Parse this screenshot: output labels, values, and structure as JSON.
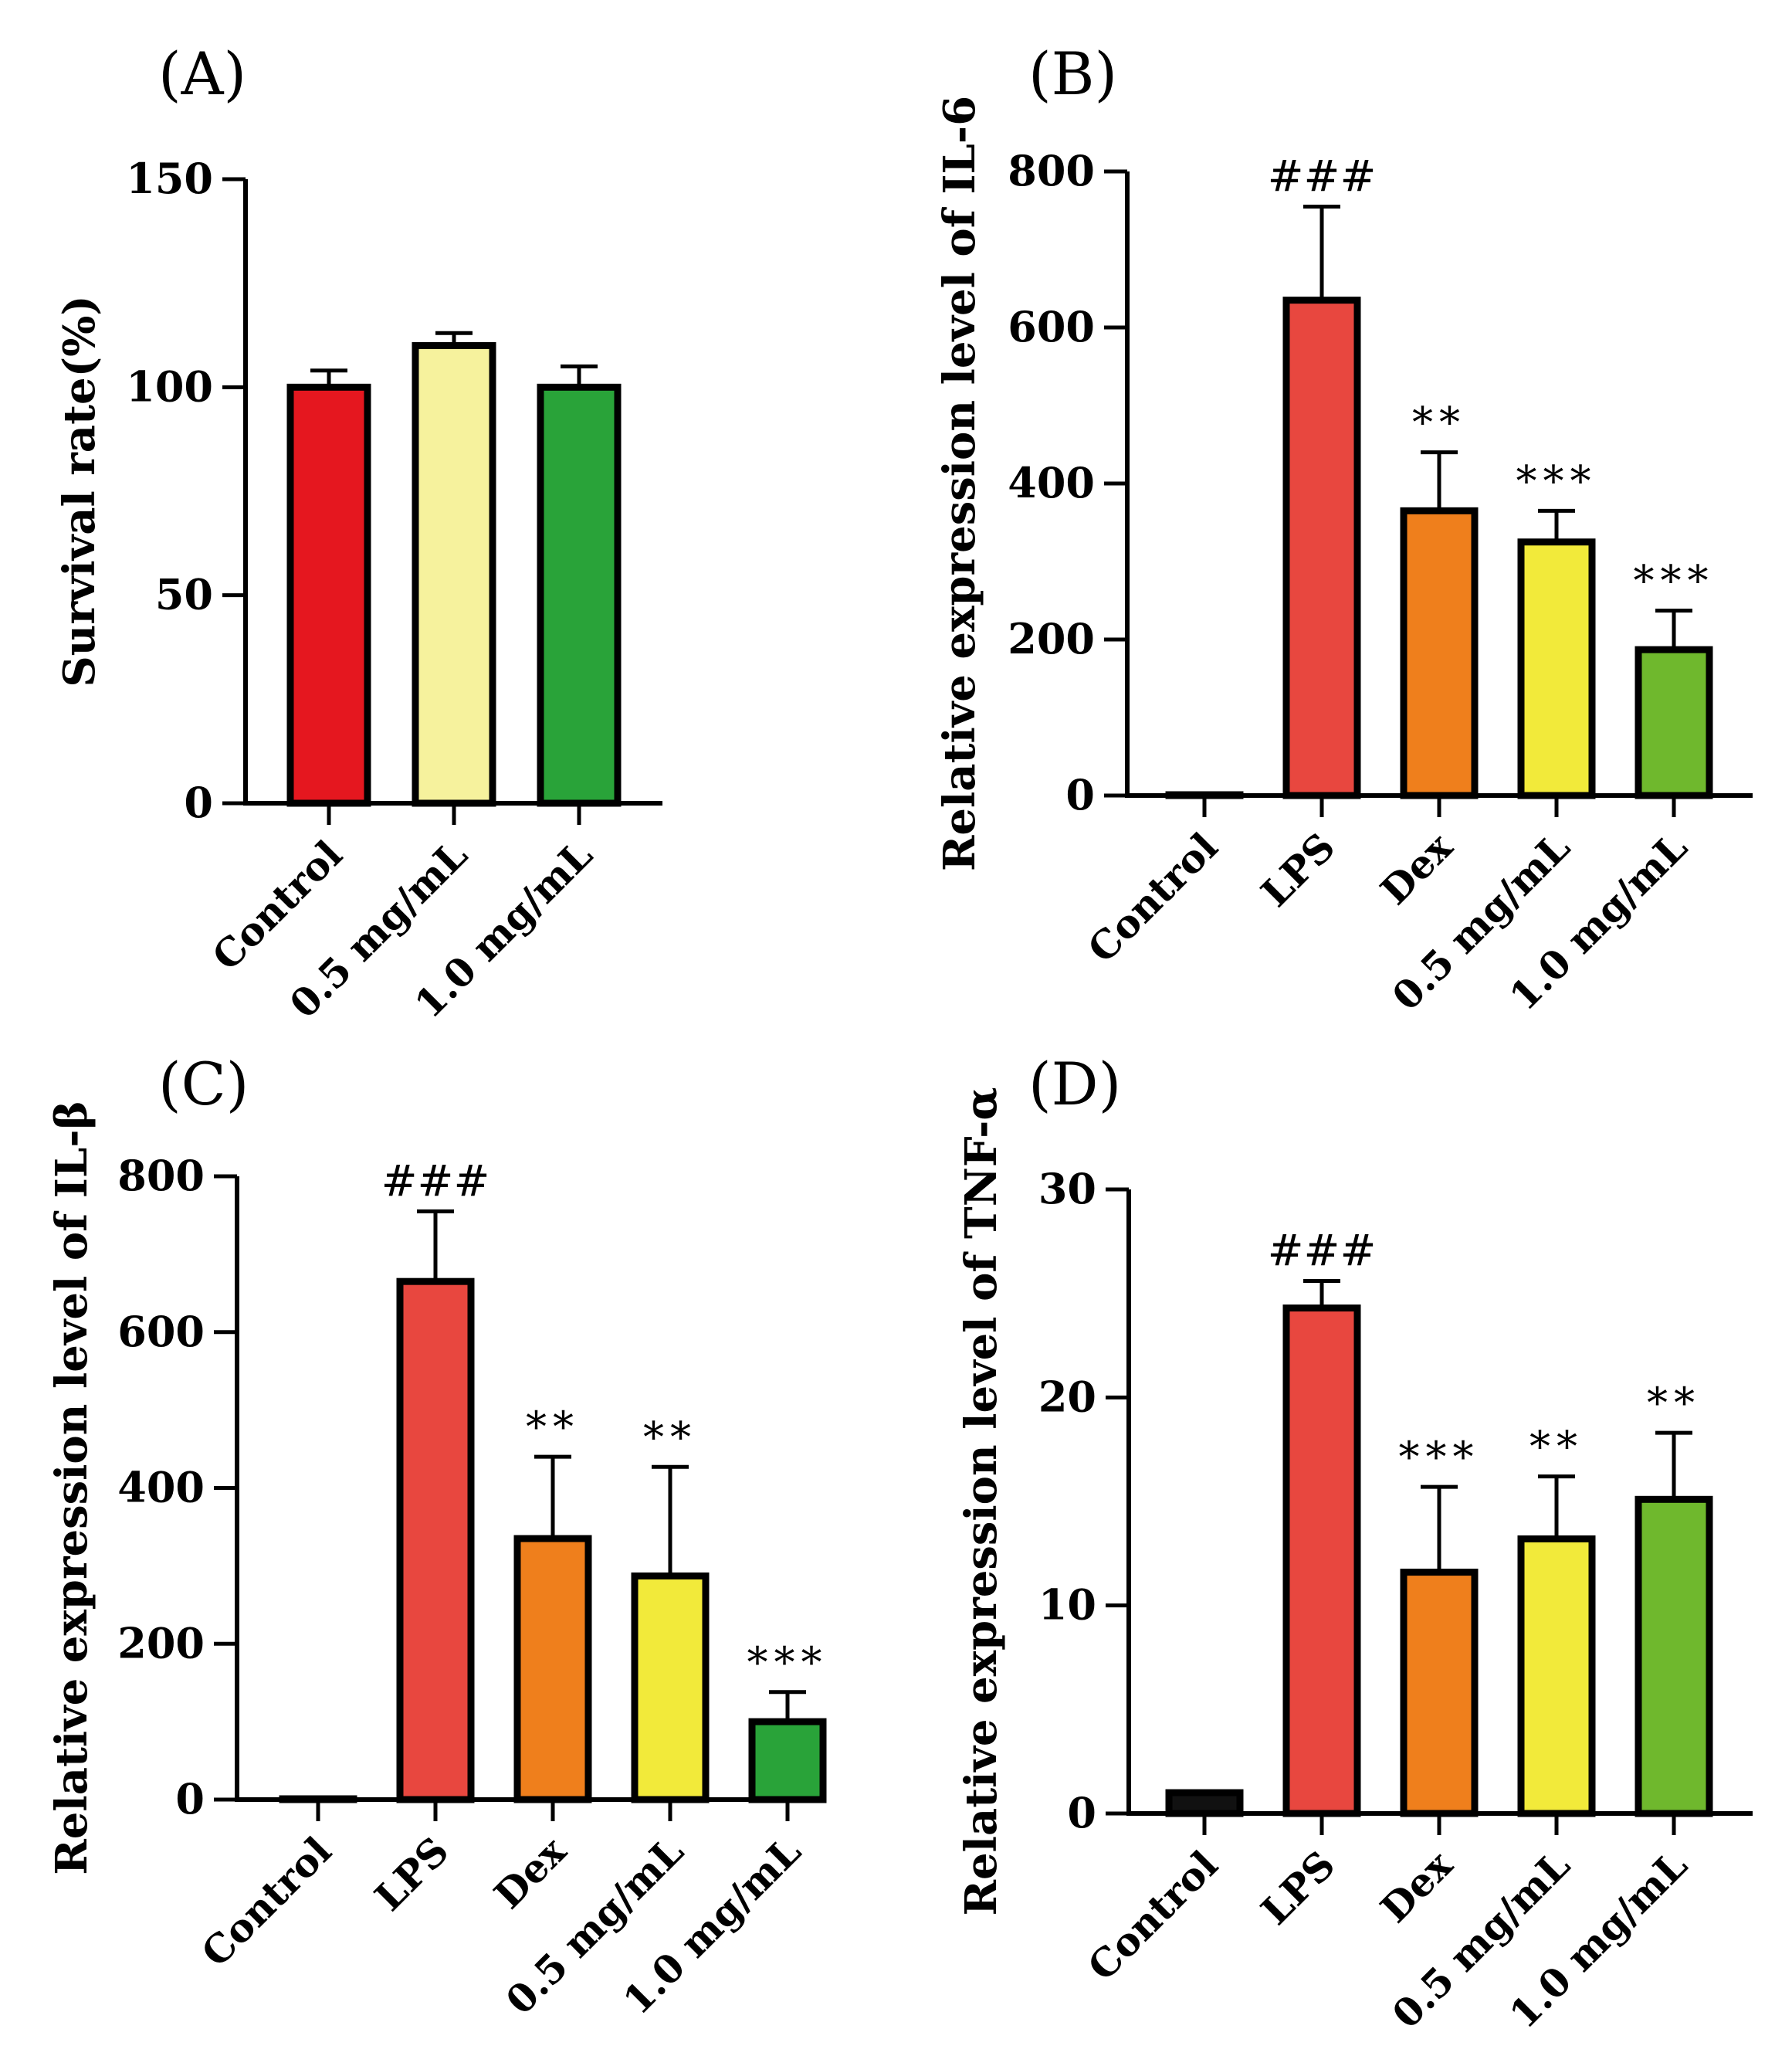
{
  "chart_data": [
    {
      "panel": "(A)",
      "type": "bar",
      "ylabel": "Survival rate(%)",
      "ylim": [
        0,
        150
      ],
      "yticks": [
        0,
        50,
        100,
        150
      ],
      "categories": [
        "Control",
        "0.5 mg/mL",
        "1.0 mg/mL"
      ],
      "values": [
        100,
        110,
        100
      ],
      "errors": [
        4,
        3,
        5
      ],
      "colors": [
        "#e5171f",
        "#f6f29d",
        "#29a339"
      ],
      "annotations": [
        "",
        "",
        ""
      ]
    },
    {
      "panel": "(B)",
      "type": "bar",
      "ylabel": "Relative expression level of IL-6",
      "ylim": [
        0,
        800
      ],
      "yticks": [
        0,
        200,
        400,
        600,
        800
      ],
      "categories": [
        "Control",
        "LPS",
        "Dex",
        "0.5 mg/mL",
        "1.0 mg/mL"
      ],
      "values": [
        1,
        635,
        365,
        325,
        187
      ],
      "errors": [
        0,
        120,
        75,
        40,
        50
      ],
      "colors": [
        "#111111",
        "#e8473f",
        "#ef7f1c",
        "#f2ea3a",
        "#6fb82d"
      ],
      "annotations": [
        "",
        "###",
        "**",
        "***",
        "***"
      ]
    },
    {
      "panel": "(C)",
      "type": "bar",
      "ylabel": "Relative expression level of IL-β",
      "ylim": [
        0,
        800
      ],
      "yticks": [
        0,
        200,
        400,
        600,
        800
      ],
      "categories": [
        "Control",
        "LPS",
        "Dex",
        "0.5 mg/mL",
        "1.0 mg/mL"
      ],
      "values": [
        1,
        665,
        335,
        287,
        100
      ],
      "errors": [
        0,
        90,
        105,
        140,
        38
      ],
      "colors": [
        "#111111",
        "#e8473f",
        "#ef7f1c",
        "#f2ea3a",
        "#29a339"
      ],
      "annotations": [
        "",
        "###",
        "**",
        "**",
        "***"
      ]
    },
    {
      "panel": "(D)",
      "type": "bar",
      "ylabel": "Relative expression level of TNF-α",
      "ylim": [
        0,
        30
      ],
      "yticks": [
        0,
        10,
        20,
        30
      ],
      "categories": [
        "Control",
        "LPS",
        "Dex",
        "0.5 mg/mL",
        "1.0 mg/mL"
      ],
      "values": [
        1,
        24.3,
        11.6,
        13.2,
        15.1
      ],
      "errors": [
        0,
        1.3,
        4.1,
        3.0,
        3.2
      ],
      "colors": [
        "#111111",
        "#e8473f",
        "#ef7f1c",
        "#f2ea3a",
        "#6fb82d"
      ],
      "annotations": [
        "",
        "###",
        "***",
        "**",
        "**"
      ]
    }
  ]
}
